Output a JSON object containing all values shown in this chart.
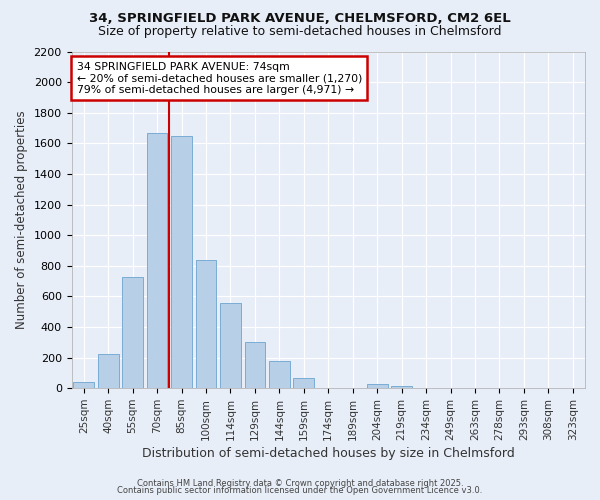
{
  "title_line1": "34, SPRINGFIELD PARK AVENUE, CHELMSFORD, CM2 6EL",
  "title_line2": "Size of property relative to semi-detached houses in Chelmsford",
  "xlabel": "Distribution of semi-detached houses by size in Chelmsford",
  "ylabel": "Number of semi-detached properties",
  "categories": [
    "25sqm",
    "40sqm",
    "55sqm",
    "70sqm",
    "85sqm",
    "100sqm",
    "114sqm",
    "129sqm",
    "144sqm",
    "159sqm",
    "174sqm",
    "189sqm",
    "204sqm",
    "219sqm",
    "234sqm",
    "249sqm",
    "263sqm",
    "278sqm",
    "293sqm",
    "308sqm",
    "323sqm"
  ],
  "values": [
    40,
    225,
    725,
    1670,
    1650,
    840,
    560,
    300,
    180,
    65,
    0,
    0,
    30,
    15,
    0,
    0,
    0,
    0,
    0,
    0,
    0
  ],
  "bar_color": "#b8cfe8",
  "bar_edgecolor": "#7aacd4",
  "background_color": "#e8eef8",
  "grid_color": "#ffffff",
  "vline_x_pos": 3.5,
  "vline_color": "#cc0000",
  "annotation_text": "34 SPRINGFIELD PARK AVENUE: 74sqm\n← 20% of semi-detached houses are smaller (1,270)\n79% of semi-detached houses are larger (4,971) →",
  "annotation_box_edgecolor": "#cc0000",
  "annotation_box_facecolor": "#ffffff",
  "footer_line1": "Contains HM Land Registry data © Crown copyright and database right 2025.",
  "footer_line2": "Contains public sector information licensed under the Open Government Licence v3.0.",
  "ylim": [
    0,
    2200
  ],
  "yticks": [
    0,
    200,
    400,
    600,
    800,
    1000,
    1200,
    1400,
    1600,
    1800,
    2000,
    2200
  ]
}
